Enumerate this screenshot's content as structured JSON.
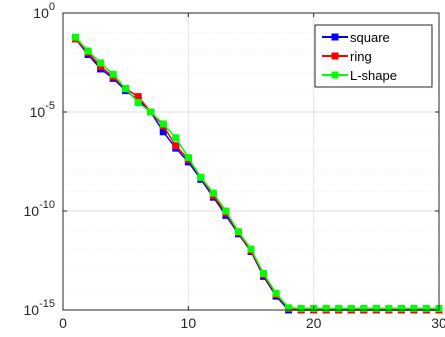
{
  "chart_data": {
    "type": "line",
    "title": "",
    "xlabel": "",
    "ylabel": "",
    "xscale": "linear",
    "yscale": "log",
    "xlim": [
      0,
      30
    ],
    "ylim": [
      1e-15,
      1
    ],
    "xticks": [
      0,
      10,
      20,
      30
    ],
    "xtick_labels": [
      "0",
      "10",
      "20",
      "30"
    ],
    "yticks": [
      1e-15,
      1e-10,
      1e-05,
      1
    ],
    "ytick_labels": [
      {
        "base": "10",
        "exp": "-15"
      },
      {
        "base": "10",
        "exp": "-10"
      },
      {
        "base": "10",
        "exp": "-5"
      },
      {
        "base": "10",
        "exp": "0"
      }
    ],
    "grid": true,
    "minor_grid_y": true,
    "legend_position": "top-right",
    "series": [
      {
        "name": "square",
        "color": "#0000ff",
        "marker": "square",
        "x": [
          1,
          2,
          3,
          4,
          5,
          6,
          7,
          8,
          9,
          10,
          11,
          12,
          13,
          14,
          15,
          16,
          17,
          18,
          19,
          20,
          21,
          22,
          23,
          24,
          25,
          26,
          27,
          28,
          29,
          30
        ],
        "y": [
          0.05,
          0.008,
          0.0015,
          0.0005,
          0.00012,
          4e-05,
          1e-05,
          1e-06,
          1.5e-07,
          3e-08,
          4e-09,
          5e-10,
          6e-11,
          7e-12,
          9e-13,
          5e-14,
          5e-15,
          1e-15,
          1e-15,
          1e-15,
          1e-15,
          1e-15,
          1e-15,
          1e-15,
          1e-15,
          1e-15,
          1e-15,
          1e-15,
          1e-15,
          1e-15
        ]
      },
      {
        "name": "ring",
        "color": "#ff0000",
        "marker": "square",
        "x": [
          1,
          2,
          3,
          4,
          5,
          6,
          7,
          8,
          9,
          10,
          11,
          12,
          13,
          14,
          15,
          16,
          17,
          18,
          19,
          20,
          21,
          22,
          23,
          24,
          25,
          26,
          27,
          28,
          29,
          30
        ],
        "y": [
          0.05,
          0.01,
          0.002,
          0.0006,
          0.00015,
          6e-05,
          1e-05,
          2e-06,
          2e-07,
          4e-08,
          5e-09,
          6e-10,
          8e-11,
          8e-12,
          1e-12,
          6e-14,
          6e-15,
          1.2e-15,
          1e-15,
          1e-15,
          1e-15,
          1e-15,
          1e-15,
          1e-15,
          1e-15,
          1e-15,
          1e-15,
          1e-15,
          1e-15,
          1e-15
        ]
      },
      {
        "name": "L-shape",
        "color": "#00ff00",
        "marker": "square",
        "x": [
          1,
          2,
          3,
          4,
          5,
          6,
          7,
          8,
          9,
          10,
          11,
          12,
          13,
          14,
          15,
          16,
          17,
          18,
          19,
          20,
          21,
          22,
          23,
          24,
          25,
          26,
          27,
          28,
          29,
          30
        ],
        "y": [
          0.06,
          0.012,
          0.003,
          0.0008,
          0.00015,
          3e-05,
          1e-05,
          2.5e-06,
          5e-07,
          5e-08,
          5e-09,
          8e-10,
          1e-10,
          9e-12,
          1.2e-12,
          7e-14,
          7e-15,
          1.3e-15,
          1.2e-15,
          1.2e-15,
          1.2e-15,
          1.2e-15,
          1.2e-15,
          1.2e-15,
          1.2e-15,
          1.2e-15,
          1.2e-15,
          1.2e-15,
          1.2e-15,
          1.2e-15
        ]
      }
    ]
  }
}
